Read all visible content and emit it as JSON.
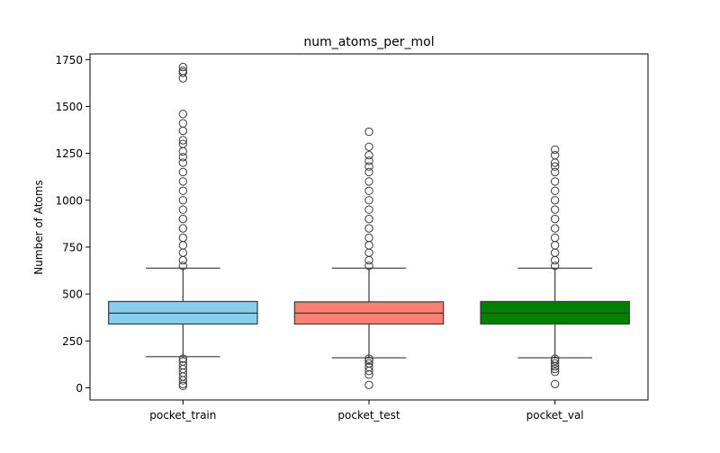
{
  "chart_data": {
    "type": "box",
    "title": "num_atoms_per_mol",
    "xlabel": "",
    "ylabel": "Number of Atoms",
    "ylim": [
      -65,
      1780
    ],
    "yticks": [
      0,
      250,
      500,
      750,
      1000,
      1250,
      1500,
      1750
    ],
    "ytick_labels": [
      "0",
      "250",
      "500",
      "750",
      "1000",
      "1250",
      "1500",
      "1750"
    ],
    "grid": false,
    "categories": [
      "pocket_train",
      "pocket_test",
      "pocket_val"
    ],
    "series": [
      {
        "category": "pocket_train",
        "color": "#87CEEB",
        "whisker_low": 166,
        "q1": 340,
        "median": 398,
        "q3": 460,
        "whisker_high": 638,
        "outliers_high": [
          650,
          680,
          720,
          760,
          800,
          850,
          900,
          950,
          1000,
          1050,
          1100,
          1150,
          1200,
          1230,
          1260,
          1300,
          1320,
          1370,
          1410,
          1460,
          1650,
          1680,
          1690,
          1710
        ],
        "outliers_low": [
          10,
          20,
          40,
          60,
          80,
          100,
          120,
          140,
          155
        ]
      },
      {
        "category": "pocket_test",
        "color": "#FA8072",
        "whisker_low": 160,
        "q1": 340,
        "median": 398,
        "q3": 458,
        "whisker_high": 638,
        "outliers_high": [
          650,
          680,
          720,
          760,
          800,
          850,
          900,
          950,
          1000,
          1050,
          1100,
          1150,
          1180,
          1210,
          1240,
          1285,
          1365
        ],
        "outliers_low": [
          15,
          70,
          90,
          110,
          130,
          145,
          155
        ]
      },
      {
        "category": "pocket_val",
        "color": "#008000",
        "whisker_low": 160,
        "q1": 340,
        "median": 398,
        "q3": 460,
        "whisker_high": 638,
        "outliers_high": [
          650,
          680,
          720,
          760,
          800,
          850,
          900,
          950,
          1000,
          1050,
          1100,
          1150,
          1180,
          1200,
          1240,
          1270
        ],
        "outliers_low": [
          20,
          85,
          100,
          115,
          130,
          145,
          155
        ]
      }
    ]
  }
}
